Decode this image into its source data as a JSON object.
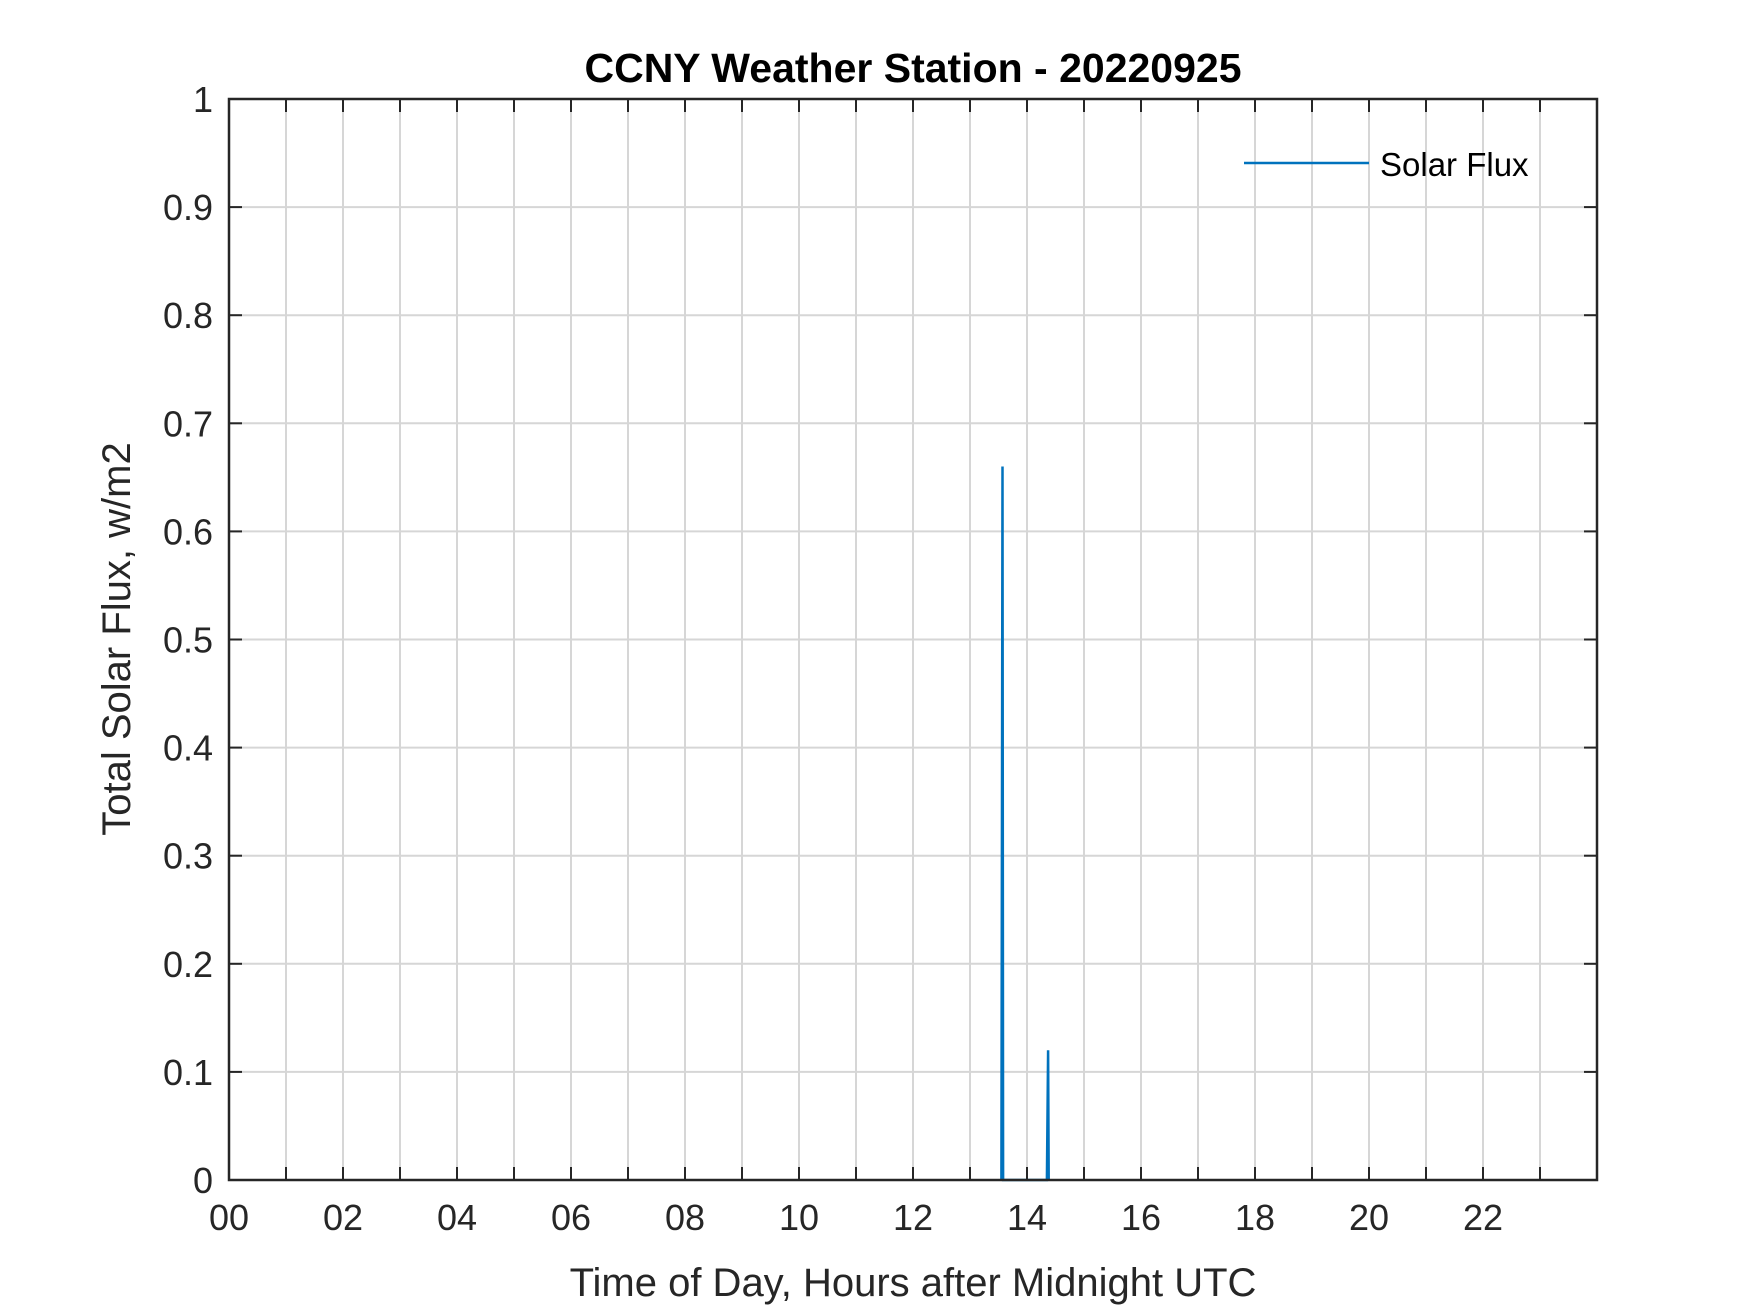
{
  "chart_data": {
    "type": "line",
    "title": "CCNY Weather Station - 20220925",
    "xlabel": "Time of Day, Hours after Midnight UTC",
    "ylabel": "Total Solar Flux, w/m2",
    "xlim": [
      0,
      24
    ],
    "ylim": [
      0,
      1
    ],
    "x_ticks": [
      0,
      2,
      4,
      6,
      8,
      10,
      12,
      14,
      16,
      18,
      20,
      22
    ],
    "x_tick_labels": [
      "00",
      "02",
      "04",
      "06",
      "08",
      "10",
      "12",
      "14",
      "16",
      "18",
      "20",
      "22"
    ],
    "x_minor_grid": [
      1,
      3,
      5,
      7,
      9,
      11,
      13,
      15,
      17,
      19,
      21,
      23
    ],
    "y_ticks": [
      0,
      0.1,
      0.2,
      0.3,
      0.4,
      0.5,
      0.6,
      0.7,
      0.8,
      0.9,
      1
    ],
    "y_tick_labels": [
      "0",
      "0.1",
      "0.2",
      "0.3",
      "0.4",
      "0.5",
      "0.6",
      "0.7",
      "0.8",
      "0.9",
      "1"
    ],
    "grid": true,
    "legend_position": "top-right",
    "series": [
      {
        "name": "Solar Flux",
        "color": "#0072bd",
        "x": [
          13.55,
          13.57,
          13.58,
          14.35,
          14.37,
          14.38
        ],
        "y": [
          0,
          0.66,
          0,
          0,
          0.12,
          0
        ]
      }
    ]
  }
}
